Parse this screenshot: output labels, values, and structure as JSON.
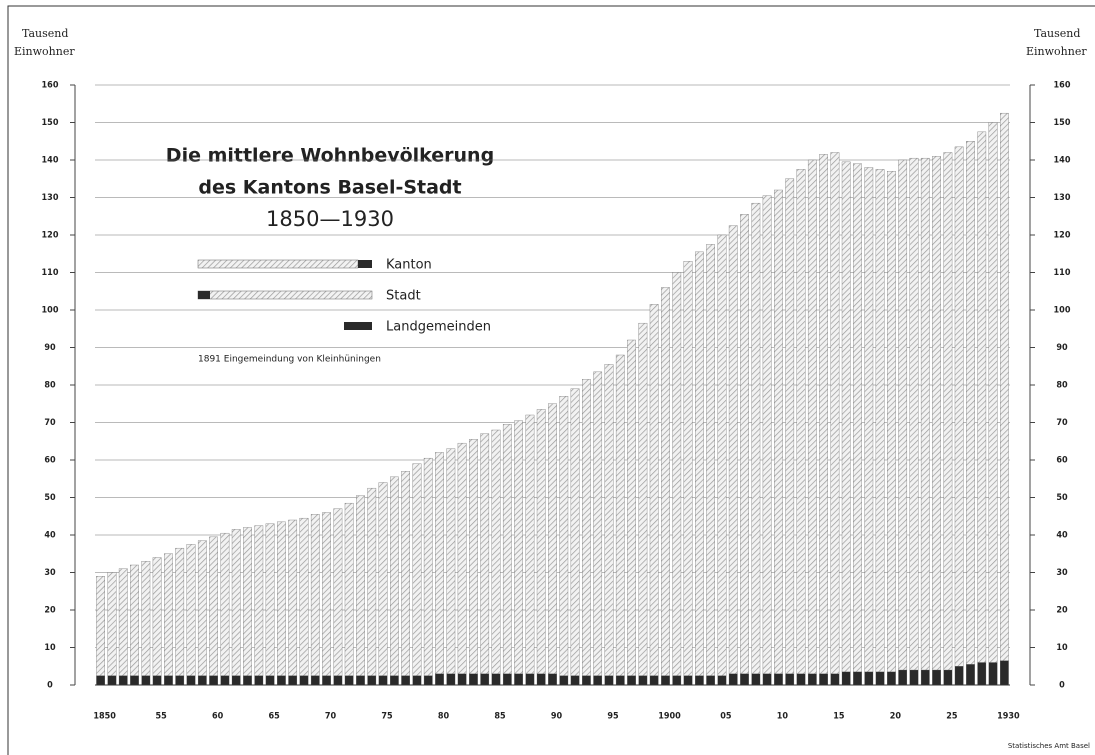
{
  "chart_data": {
    "type": "stacked_bar",
    "title_lines": [
      "Die mittlere Wohnbevölkerung",
      "des Kantons Basel-Stadt",
      "1850—1930"
    ],
    "y_label_lines": [
      "Tausend",
      "Einwohner"
    ],
    "legend_total": "Kanton",
    "annotation": "1891 Eingemeindung von Kleinhüningen",
    "source": "Statistisches Amt Basel",
    "categories": [
      "1850",
      null,
      null,
      null,
      null,
      "55",
      null,
      null,
      null,
      null,
      "60",
      null,
      null,
      null,
      null,
      "65",
      null,
      null,
      null,
      null,
      "70",
      null,
      null,
      null,
      null,
      "75",
      null,
      null,
      null,
      null,
      "80",
      null,
      null,
      null,
      null,
      "85",
      null,
      null,
      null,
      null,
      "90",
      null,
      null,
      null,
      null,
      "95",
      null,
      null,
      null,
      null,
      "1900",
      null,
      null,
      null,
      null,
      "05",
      null,
      null,
      null,
      null,
      "10",
      null,
      null,
      null,
      null,
      "15",
      null,
      null,
      null,
      null,
      "20",
      null,
      null,
      null,
      null,
      "25",
      null,
      null,
      null,
      null,
      "1930"
    ],
    "series": [
      {
        "name": "Landgemeinden",
        "color": "#2a2a2a",
        "values": [
          2.5,
          2.5,
          2.5,
          2.5,
          2.5,
          2.5,
          2.5,
          2.5,
          2.5,
          2.5,
          2.5,
          2.5,
          2.5,
          2.5,
          2.5,
          2.5,
          2.5,
          2.5,
          2.5,
          2.5,
          2.5,
          2.5,
          2.5,
          2.5,
          2.5,
          2.5,
          2.5,
          2.5,
          2.5,
          2.5,
          3,
          3,
          3,
          3,
          3,
          3,
          3,
          3,
          3,
          3,
          3,
          2.5,
          2.5,
          2.5,
          2.5,
          2.5,
          2.5,
          2.5,
          2.5,
          2.5,
          2.5,
          2.5,
          2.5,
          2.5,
          2.5,
          2.5,
          3,
          3,
          3,
          3,
          3,
          3,
          3,
          3,
          3,
          3,
          3.5,
          3.5,
          3.5,
          3.5,
          3.5,
          4,
          4,
          4,
          4,
          4,
          5,
          5.5,
          6,
          6,
          6.5
        ]
      },
      {
        "name": "Stadt",
        "color": "#9a9a9a",
        "values": [
          26.5,
          27.5,
          28.5,
          29.5,
          30.5,
          31.5,
          32.5,
          34,
          35,
          36,
          37,
          38,
          39,
          39.5,
          40,
          40.5,
          41,
          41.5,
          42,
          43,
          43.5,
          44.5,
          46,
          48,
          50,
          51.5,
          53,
          54.5,
          56.5,
          58,
          59,
          60,
          61.5,
          62.5,
          64,
          65,
          66.5,
          67.5,
          69,
          70.5,
          72,
          74.5,
          76.5,
          79,
          81,
          83,
          85.5,
          89.5,
          94,
          99,
          103.5,
          107.5,
          110.5,
          113,
          115,
          117.5,
          119.5,
          122.5,
          125.5,
          127.5,
          129,
          132,
          134.5,
          137,
          138.5,
          139,
          136,
          135.5,
          134.5,
          134,
          133.5,
          136,
          136.5,
          136.5,
          137,
          138,
          138.5,
          139.5,
          141.5,
          144,
          146
        ]
      }
    ],
    "ylim": [
      0,
      160
    ],
    "yticks": [
      0,
      10,
      20,
      30,
      40,
      50,
      60,
      70,
      80,
      90,
      100,
      110,
      120,
      130,
      140,
      150,
      160
    ],
    "grid": true
  }
}
